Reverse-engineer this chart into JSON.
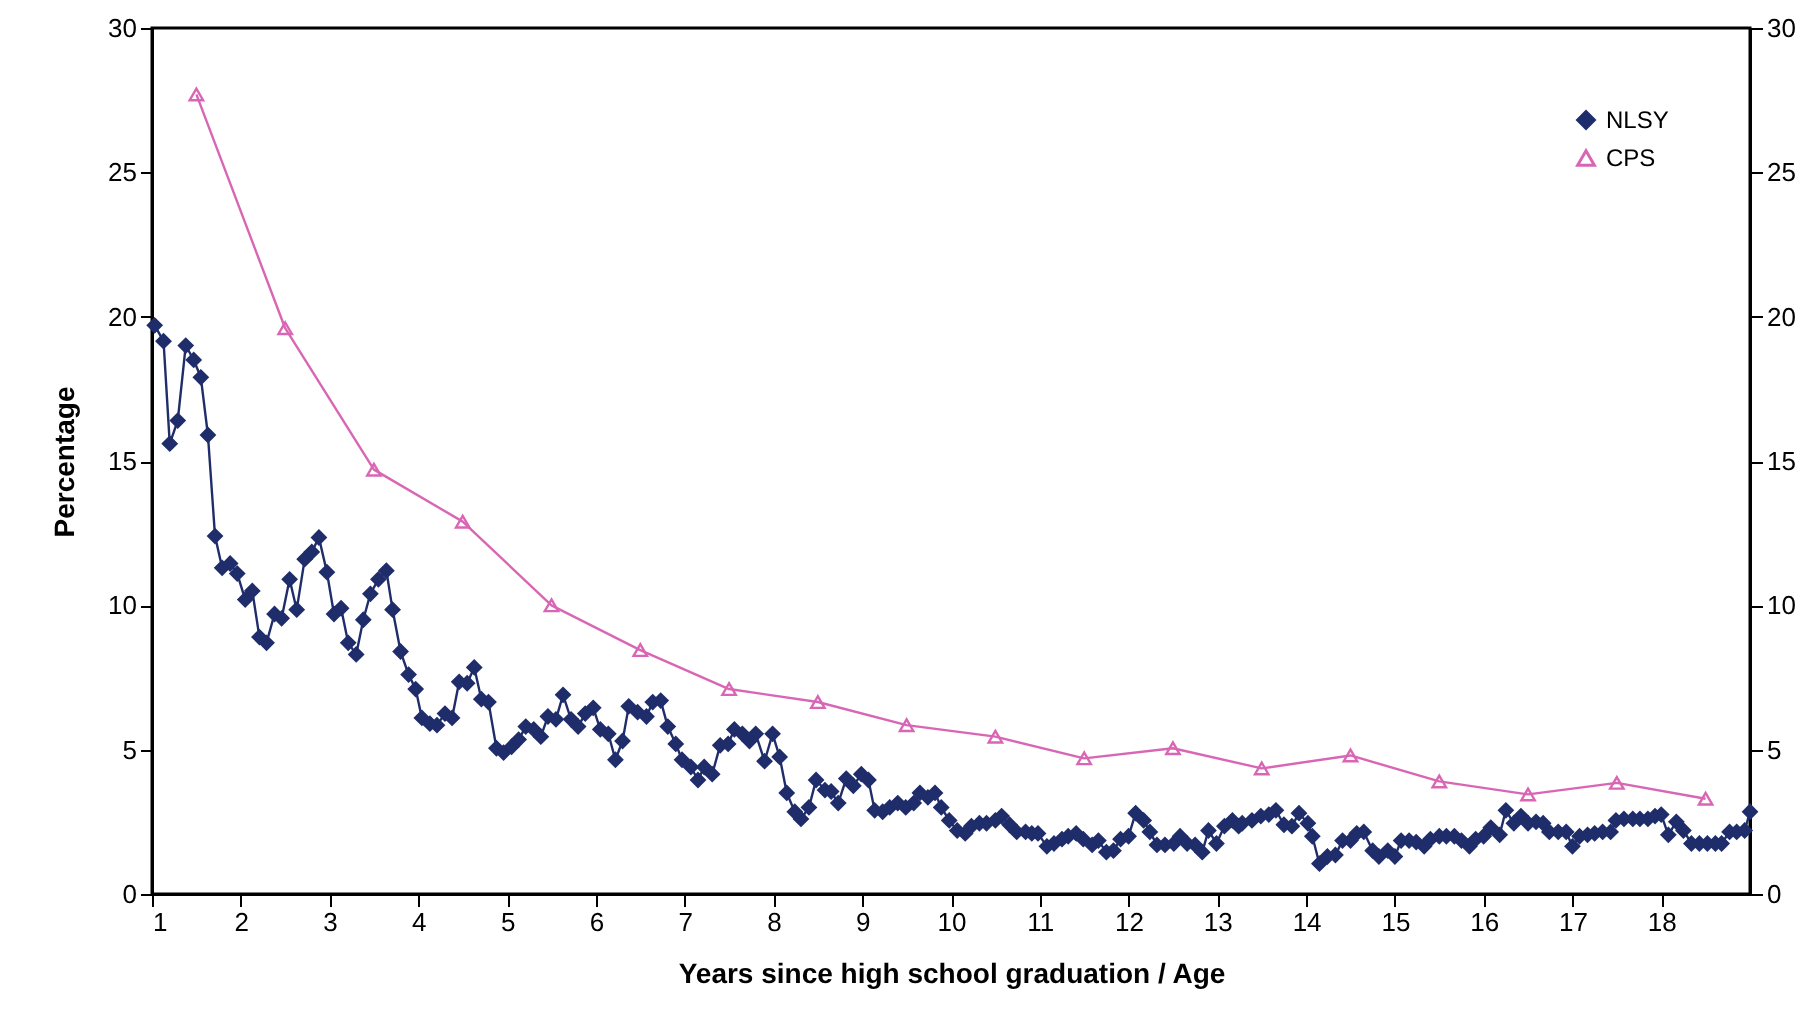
{
  "chart_data": {
    "type": "line",
    "xlabel": "Years since high school graduation / Age",
    "ylabel": "Percentage",
    "xlim": [
      1,
      19
    ],
    "xticks": [
      1,
      2,
      3,
      4,
      5,
      6,
      7,
      8,
      9,
      10,
      11,
      12,
      13,
      14,
      15,
      16,
      17,
      18
    ],
    "ylim": [
      0,
      30
    ],
    "yticks": [
      0,
      5,
      10,
      15,
      20,
      25,
      30
    ],
    "y2lim": [
      0,
      30
    ],
    "y2ticks": [
      0,
      5,
      10,
      15,
      20,
      25,
      30
    ],
    "grid": false,
    "legend": "top right",
    "line_style": "solid",
    "series": [
      {
        "name": "NLSY",
        "color": "#1f2d6b",
        "marker": "diamond",
        "x": [
          1.03,
          1.13,
          1.2,
          1.29,
          1.38,
          1.47,
          1.55,
          1.63,
          1.71,
          1.79,
          1.88,
          1.96,
          2.05,
          2.13,
          2.21,
          2.29,
          2.38,
          2.46,
          2.55,
          2.63,
          2.72,
          2.8,
          2.88,
          2.97,
          3.05,
          3.13,
          3.21,
          3.3,
          3.38,
          3.46,
          3.55,
          3.64,
          3.71,
          3.8,
          3.89,
          3.97,
          4.04,
          4.13,
          4.21,
          4.3,
          4.38,
          4.46,
          4.55,
          4.63,
          4.71,
          4.79,
          4.88,
          4.96,
          5.05,
          5.13,
          5.21,
          5.3,
          5.38,
          5.46,
          5.55,
          5.63,
          5.72,
          5.8,
          5.88,
          5.97,
          6.05,
          6.14,
          6.22,
          6.3,
          6.37,
          6.47,
          6.57,
          6.64,
          6.73,
          6.81,
          6.9,
          6.97,
          7.07,
          7.15,
          7.22,
          7.31,
          7.4,
          7.49,
          7.56,
          7.65,
          7.73,
          7.8,
          7.9,
          7.99,
          8.07,
          8.15,
          8.24,
          8.31,
          8.4,
          8.48,
          8.58,
          8.65,
          8.73,
          8.82,
          8.9,
          8.99,
          9.07,
          9.14,
          9.23,
          9.31,
          9.4,
          9.49,
          9.58,
          9.65,
          9.74,
          9.82,
          9.89,
          9.98,
          10.07,
          10.16,
          10.23,
          10.32,
          10.4,
          10.5,
          10.57,
          10.66,
          10.74,
          10.84,
          10.91,
          10.98,
          11.08,
          11.16,
          11.25,
          11.32,
          11.41,
          11.49,
          11.59,
          11.66,
          11.75,
          11.83,
          11.91,
          12.0,
          12.08,
          12.17,
          12.24,
          12.32,
          12.41,
          12.51,
          12.58,
          12.66,
          12.75,
          12.83,
          12.9,
          12.99,
          13.08,
          13.17,
          13.24,
          13.28,
          13.39,
          13.49,
          13.58,
          13.66,
          13.75,
          13.84,
          13.92,
          14.02,
          14.07,
          14.15,
          14.24,
          14.33,
          14.41,
          14.5,
          14.57,
          14.65,
          14.75,
          14.82,
          14.92,
          15.0,
          15.07,
          15.16,
          15.24,
          15.33,
          15.4,
          15.5,
          15.58,
          15.67,
          15.75,
          15.84,
          15.91,
          16.0,
          16.08,
          16.18,
          16.25,
          16.34,
          16.42,
          16.5,
          16.59,
          16.67,
          16.74,
          16.84,
          16.93,
          17.0,
          17.08,
          17.17,
          17.25,
          17.34,
          17.43,
          17.49,
          17.58,
          17.68,
          17.76,
          17.85,
          17.93,
          18.0,
          18.08,
          18.17,
          18.25,
          18.34,
          18.43,
          18.52,
          18.61,
          18.68,
          18.77,
          18.85,
          18.94,
          19.0
        ],
        "values": [
          19.7,
          19.15,
          15.6,
          16.4,
          19.0,
          18.5,
          17.9,
          15.9,
          12.4,
          11.3,
          11.45,
          11.1,
          10.2,
          10.5,
          8.9,
          8.7,
          9.7,
          9.55,
          10.9,
          9.85,
          11.6,
          11.85,
          12.35,
          11.15,
          9.7,
          9.9,
          8.7,
          8.3,
          9.5,
          10.4,
          10.9,
          11.2,
          9.85,
          8.4,
          7.6,
          7.1,
          6.1,
          5.9,
          5.85,
          6.25,
          6.1,
          7.35,
          7.3,
          7.85,
          6.75,
          6.65,
          5.05,
          4.9,
          5.1,
          5.35,
          5.8,
          5.7,
          5.45,
          6.15,
          6.05,
          6.9,
          6.05,
          5.8,
          6.25,
          6.45,
          5.7,
          5.55,
          4.65,
          5.3,
          6.5,
          6.3,
          6.15,
          6.65,
          6.7,
          5.8,
          5.2,
          4.65,
          4.4,
          3.95,
          4.4,
          4.15,
          5.15,
          5.2,
          5.7,
          5.55,
          5.3,
          5.55,
          4.6,
          5.55,
          4.75,
          3.5,
          2.85,
          2.6,
          3.0,
          3.95,
          3.6,
          3.55,
          3.15,
          4.0,
          3.75,
          4.15,
          3.95,
          2.9,
          2.85,
          3.0,
          3.15,
          3.0,
          3.15,
          3.5,
          3.35,
          3.5,
          3.0,
          2.55,
          2.2,
          2.1,
          2.35,
          2.45,
          2.45,
          2.55,
          2.7,
          2.4,
          2.15,
          2.15,
          2.1,
          2.1,
          1.65,
          1.75,
          1.9,
          2.0,
          2.1,
          1.9,
          1.7,
          1.85,
          1.45,
          1.5,
          1.9,
          2.0,
          2.8,
          2.55,
          2.15,
          1.7,
          1.7,
          1.75,
          2.0,
          1.75,
          1.7,
          1.45,
          2.2,
          1.75,
          2.35,
          2.55,
          2.35,
          2.45,
          2.55,
          2.7,
          2.75,
          2.9,
          2.4,
          2.35,
          2.8,
          2.45,
          2.0,
          1.05,
          1.3,
          1.35,
          1.85,
          1.85,
          2.1,
          2.15,
          1.5,
          1.3,
          1.5,
          1.3,
          1.85,
          1.85,
          1.8,
          1.65,
          1.9,
          2.0,
          2.0,
          2.0,
          1.85,
          1.65,
          1.9,
          2.0,
          2.3,
          2.05,
          2.9,
          2.45,
          2.7,
          2.45,
          2.5,
          2.45,
          2.15,
          2.15,
          2.15,
          1.65,
          2.0,
          2.05,
          2.1,
          2.15,
          2.15,
          2.55,
          2.6,
          2.6,
          2.6,
          2.6,
          2.7,
          2.75,
          2.05,
          2.5,
          2.2,
          1.75,
          1.75,
          1.75,
          1.75,
          1.75,
          2.15,
          2.15,
          2.2,
          2.85
        ]
      },
      {
        "name": "CPS",
        "color": "#d966b4",
        "marker": "triangle",
        "x": [
          1.5,
          2.5,
          3.5,
          4.5,
          5.5,
          6.5,
          7.5,
          8.5,
          9.5,
          10.5,
          11.5,
          12.5,
          13.5,
          14.5,
          15.5,
          16.5,
          17.5,
          18.5
        ],
        "values": [
          27.7,
          19.6,
          14.7,
          12.9,
          10.0,
          8.45,
          7.1,
          6.65,
          5.85,
          5.45,
          4.7,
          5.05,
          4.35,
          4.8,
          3.9,
          3.45,
          3.85,
          3.3
        ]
      }
    ]
  }
}
